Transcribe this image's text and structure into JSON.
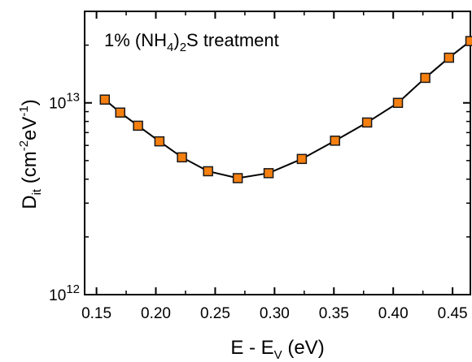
{
  "chart_data": {
    "type": "scatter",
    "annotation": {
      "a": "1% (NH",
      "b": "4",
      "c": ")",
      "d": "2",
      "e": "S treatment"
    },
    "xlabel": {
      "a": "E - E",
      "b": "V",
      "c": " (eV)"
    },
    "ylabel": {
      "a": "D",
      "b": "it",
      "c": " (cm",
      "d": "-2",
      "e": "eV",
      "f": "-1",
      "g": ")"
    },
    "xlim": [
      0.14,
      0.465
    ],
    "ylim": [
      1000000000000.0,
      30000000000000.0
    ],
    "y_scale": "log",
    "x_ticks": [
      "0.15",
      "0.20",
      "0.25",
      "0.30",
      "0.35",
      "0.40",
      "0.45"
    ],
    "x_tick_values": [
      0.15,
      0.2,
      0.25,
      0.3,
      0.35,
      0.4,
      0.45
    ],
    "y_ticks": [
      {
        "base": "10",
        "exp": "12",
        "value": 1000000000000.0
      },
      {
        "base": "10",
        "exp": "13",
        "value": 10000000000000.0
      }
    ],
    "grid": false,
    "marker_color": "#f57f0f",
    "marker_edge_color": "#1a1a1a",
    "line_color": "#000000",
    "series": [
      {
        "x": [
          0.157,
          0.17,
          0.185,
          0.203,
          0.222,
          0.244,
          0.269,
          0.295,
          0.323,
          0.351,
          0.378,
          0.404,
          0.427,
          0.447,
          0.465
        ],
        "y": [
          10400000000000.0,
          8900000000000.0,
          7600000000000.0,
          6300000000000.0,
          5200000000000.0,
          4400000000000.0,
          4050000000000.0,
          4300000000000.0,
          5100000000000.0,
          6350000000000.0,
          7900000000000.0,
          10000000000000.0,
          13500000000000.0,
          17200000000000.0,
          21000000000000.0
        ]
      }
    ]
  }
}
